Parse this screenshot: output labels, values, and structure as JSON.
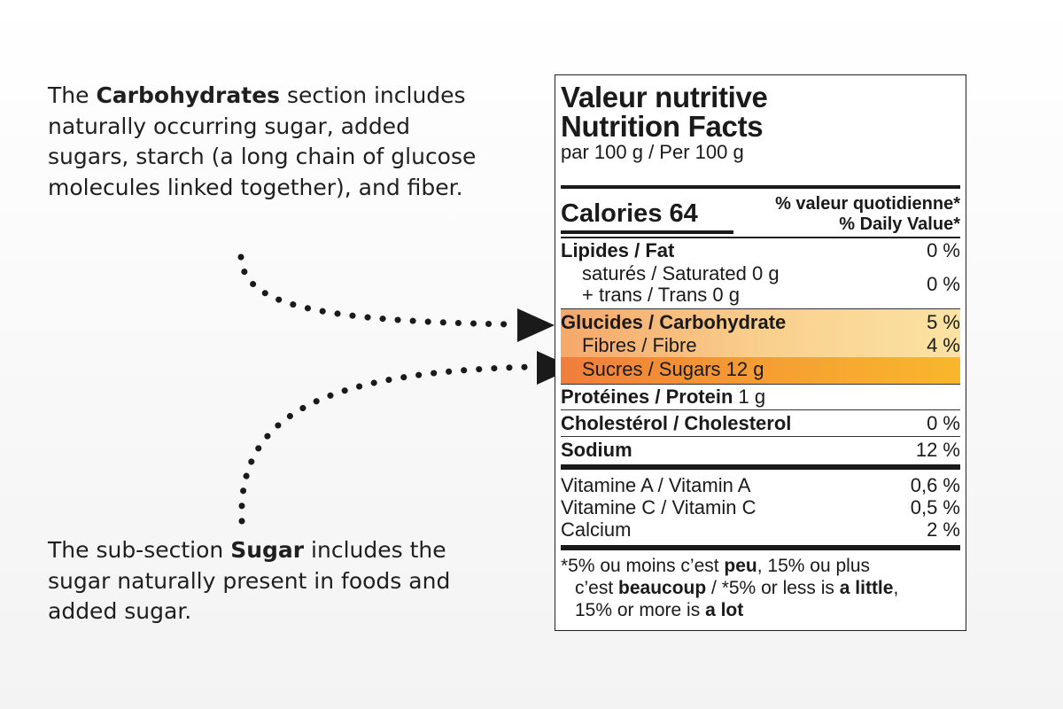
{
  "callouts": {
    "carbs": {
      "lead": "The ",
      "bold": "Carbohydrates",
      "rest": " section includes naturally occurring sugar, added sugars, starch (a long chain of glucose molecules linked together), and fiber."
    },
    "sugar": {
      "lead": "The sub-section ",
      "bold": "Sugar",
      "rest": " includes the sugar naturally present in foods and added sugar."
    }
  },
  "label": {
    "title_fr": "Valeur nutritive",
    "title_en": "Nutrition Facts",
    "basis": "par 100 g / Per 100 g",
    "calories": "Calories 64",
    "dv_fr": "% valeur quotidienne*",
    "dv_en": "% Daily Value*",
    "rows": [
      {
        "name": "Lipides / Fat",
        "value": "0 %"
      },
      {
        "name": "saturés / Saturated 0 g",
        "value": ""
      },
      {
        "name": "+ trans / Trans 0 g",
        "value": "0 %"
      },
      {
        "name": "Glucides / Carbohydrate",
        "value": "5 %"
      },
      {
        "name": "Fibres / Fibre",
        "value": "4 %"
      },
      {
        "name": "Sucres / Sugars 12 g",
        "value": ""
      },
      {
        "name_bold": "Protéines / Protein",
        "name_rest": " 1 g",
        "value": ""
      },
      {
        "name": "Cholestérol / Cholesterol",
        "value": "0 %"
      },
      {
        "name": "Sodium",
        "value": "12 %"
      },
      {
        "name": "Vitamine A / Vitamin A",
        "value": "0,6 %"
      },
      {
        "name": "Vitamine C / Vitamin C",
        "value": "0,5 %"
      },
      {
        "name": "Calcium",
        "value": "2 %"
      }
    ],
    "footnote": {
      "l1a": "*5% ou moins c’est ",
      "l1b": "peu",
      "l1c": ", 15% ou plus",
      "l2a": "c’est ",
      "l2b": "beaucoup",
      "l2c": " / *5% or less is ",
      "l2d": "a little",
      "l2e": ",",
      "l3a": "15% or more is ",
      "l3b": "a lot"
    }
  },
  "colors": {
    "carb_highlight": "#f9cf8d",
    "sugar_highlight": "#f6a032",
    "text": "#1a1a1a"
  }
}
